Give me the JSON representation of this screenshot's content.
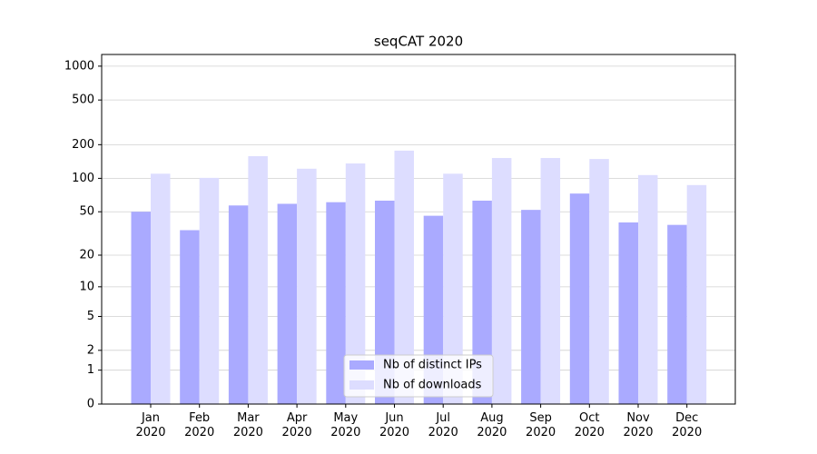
{
  "chart_data": {
    "type": "bar",
    "title": "seqCAT 2020",
    "categories": [
      "Jan\n2020",
      "Feb\n2020",
      "Mar\n2020",
      "Apr\n2020",
      "May\n2020",
      "Jun\n2020",
      "Jul\n2020",
      "Aug\n2020",
      "Sep\n2020",
      "Oct\n2020",
      "Nov\n2020",
      "Dec\n2020"
    ],
    "series": [
      {
        "name": "Nb of distinct IPs",
        "color": "#aaaaff",
        "values": [
          50,
          34,
          57,
          59,
          61,
          63,
          46,
          63,
          52,
          73,
          40,
          38
        ]
      },
      {
        "name": "Nb of downloads",
        "color": "#ddddff",
        "values": [
          110,
          101,
          158,
          122,
          136,
          177,
          110,
          152,
          152,
          149,
          107,
          87
        ]
      }
    ],
    "yscale": "log1p",
    "ylim": [
      0,
      1270
    ],
    "yticks": [
      0,
      1,
      2,
      5,
      10,
      20,
      50,
      100,
      200,
      500,
      1000
    ],
    "grid": true,
    "legend": "lower center"
  }
}
